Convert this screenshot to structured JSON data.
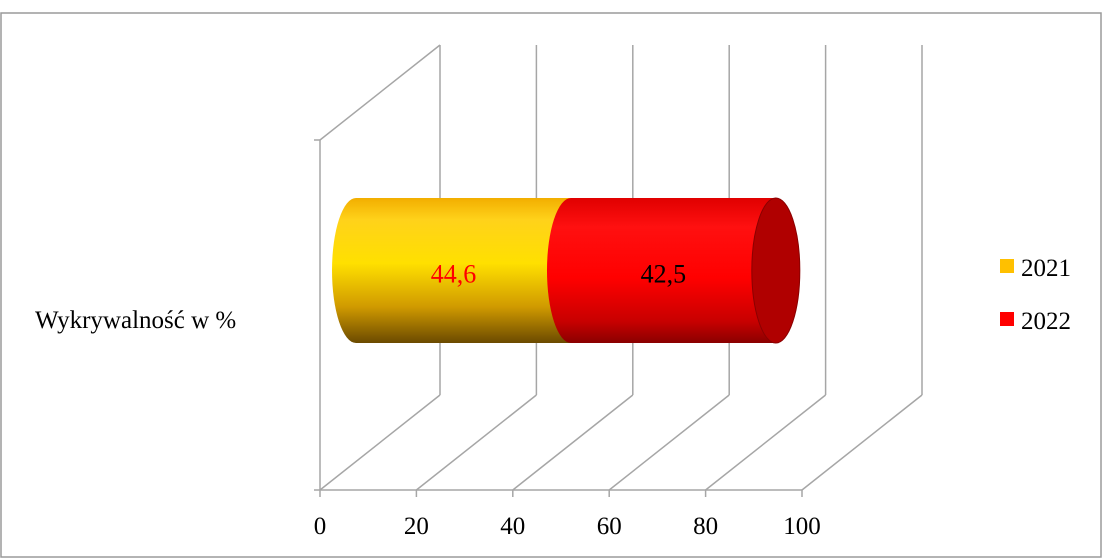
{
  "chart_data": {
    "type": "bar",
    "orientation": "horizontal",
    "stacked": true,
    "style": "3d-cylinder",
    "categories": [
      "Wykrywalność w %"
    ],
    "series": [
      {
        "name": "2021",
        "values": [
          44.6
        ],
        "color": "#FFC000",
        "label_color": "#FF0000"
      },
      {
        "name": "2022",
        "values": [
          42.5
        ],
        "color": "#FF0000",
        "label_color": "#000000"
      }
    ],
    "data_labels": [
      "44,6",
      "42,5"
    ],
    "title": "",
    "xlabel": "",
    "ylabel": "",
    "xlim": [
      0,
      100
    ],
    "x_ticks": [
      "0",
      "20",
      "40",
      "60",
      "80",
      "100"
    ],
    "grid": true,
    "legend": "right"
  }
}
